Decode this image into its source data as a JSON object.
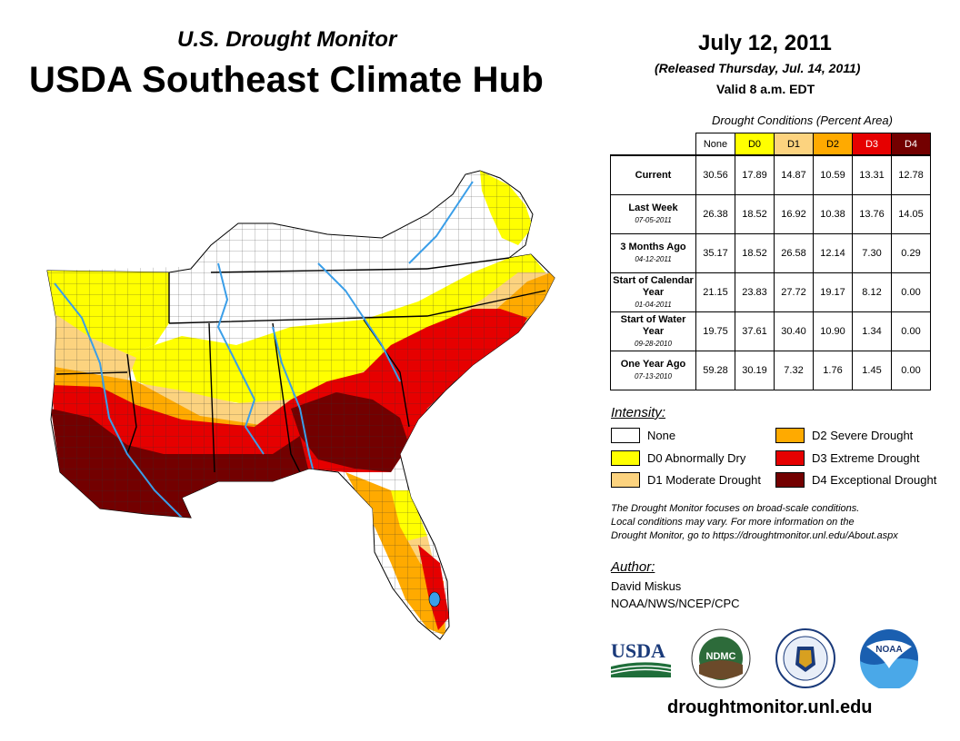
{
  "header": {
    "subtitle": "U.S. Drought Monitor",
    "title": "USDA Southeast Climate Hub",
    "date": "July 12, 2011",
    "released": "(Released Thursday, Jul. 14, 2011)",
    "valid": "Valid 8 a.m. EDT"
  },
  "table": {
    "caption": "Drought Conditions (Percent Area)",
    "columns": [
      "None",
      "D0",
      "D1",
      "D2",
      "D3",
      "D4"
    ],
    "rows": [
      {
        "label": "Current",
        "sub": "",
        "values": [
          "30.56",
          "17.89",
          "14.87",
          "10.59",
          "13.31",
          "12.78"
        ]
      },
      {
        "label": "Last Week",
        "sub": "07-05-2011",
        "values": [
          "26.38",
          "18.52",
          "16.92",
          "10.38",
          "13.76",
          "14.05"
        ]
      },
      {
        "label": "3 Months Ago",
        "sub": "04-12-2011",
        "values": [
          "35.17",
          "18.52",
          "26.58",
          "12.14",
          "7.30",
          "0.29"
        ]
      },
      {
        "label": "Start of Calendar Year",
        "sub": "01-04-2011",
        "values": [
          "21.15",
          "23.83",
          "27.72",
          "19.17",
          "8.12",
          "0.00"
        ]
      },
      {
        "label": "Start of Water Year",
        "sub": "09-28-2010",
        "values": [
          "19.75",
          "37.61",
          "30.40",
          "10.90",
          "1.34",
          "0.00"
        ]
      },
      {
        "label": "One Year Ago",
        "sub": "07-13-2010",
        "values": [
          "59.28",
          "30.19",
          "7.32",
          "1.76",
          "1.45",
          "0.00"
        ]
      }
    ]
  },
  "legend": {
    "title": "Intensity:",
    "items": [
      {
        "label": "None",
        "color": "#ffffff"
      },
      {
        "label": "D0 Abnormally Dry",
        "color": "#ffff00"
      },
      {
        "label": "D1 Moderate Drought",
        "color": "#fcd37f"
      },
      {
        "label": "D2 Severe Drought",
        "color": "#ffaa00"
      },
      {
        "label": "D3 Extreme Drought",
        "color": "#e60000"
      },
      {
        "label": "D4 Exceptional Drought",
        "color": "#730000"
      }
    ]
  },
  "note": {
    "line1": "The Drought Monitor focuses on broad-scale conditions.",
    "line2": "Local conditions may vary. For more information on the",
    "line3": "Drought Monitor, go to https://droughtmonitor.unl.edu/About.aspx"
  },
  "author": {
    "title": "Author:",
    "name": "David Miskus",
    "org": "NOAA/NWS/NCEP/CPC"
  },
  "logos": {
    "usda": "USDA",
    "ndmc": "NDMC",
    "noaa": "NOAA"
  },
  "site": "droughtmonitor.unl.edu",
  "colors": {
    "none": "#ffffff",
    "d0": "#ffff00",
    "d1": "#fcd37f",
    "d2": "#ffaa00",
    "d3": "#e60000",
    "d4": "#730000",
    "river": "#3a9ee8"
  }
}
